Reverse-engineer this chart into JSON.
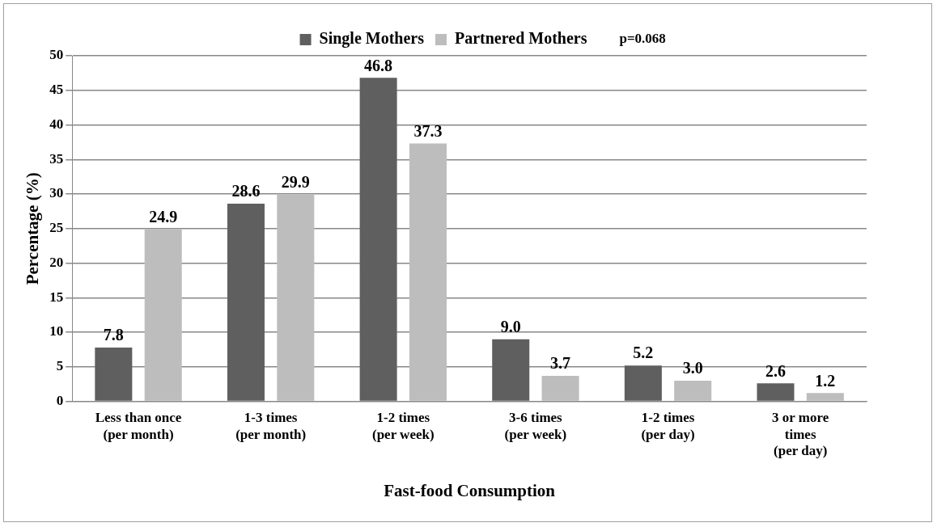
{
  "chart_data": {
    "type": "bar",
    "xlabel": "Fast-food Consumption",
    "ylabel": "Percentage (%)",
    "categories": [
      "Less than once\n(per month)",
      "1-3 times\n(per month)",
      "1-2 times\n(per week)",
      "3-6 times\n(per week)",
      "1-2 times\n(per day)",
      "3 or more\ntimes\n(per day)"
    ],
    "series": [
      {
        "name": "Single Mothers",
        "color": "#5f5f5f",
        "values": [
          7.8,
          28.6,
          46.8,
          9.0,
          5.2,
          2.6
        ],
        "value_labels": [
          "7.8",
          "28.6",
          "46.8",
          "9.0",
          "5.2",
          "2.6"
        ]
      },
      {
        "name": "Partnered Mothers",
        "color": "#bdbdbd",
        "values": [
          24.9,
          29.9,
          37.3,
          3.7,
          3.0,
          1.2
        ],
        "value_labels": [
          "24.9",
          "29.9",
          "37.3",
          "3.7",
          "3.0",
          "1.2"
        ]
      }
    ],
    "ylim": [
      0,
      50
    ],
    "yticks": [
      0,
      5,
      10,
      15,
      20,
      25,
      30,
      35,
      40,
      45,
      50
    ],
    "grid": "y",
    "legend": "top",
    "annotations": [
      "p=0.068"
    ]
  }
}
